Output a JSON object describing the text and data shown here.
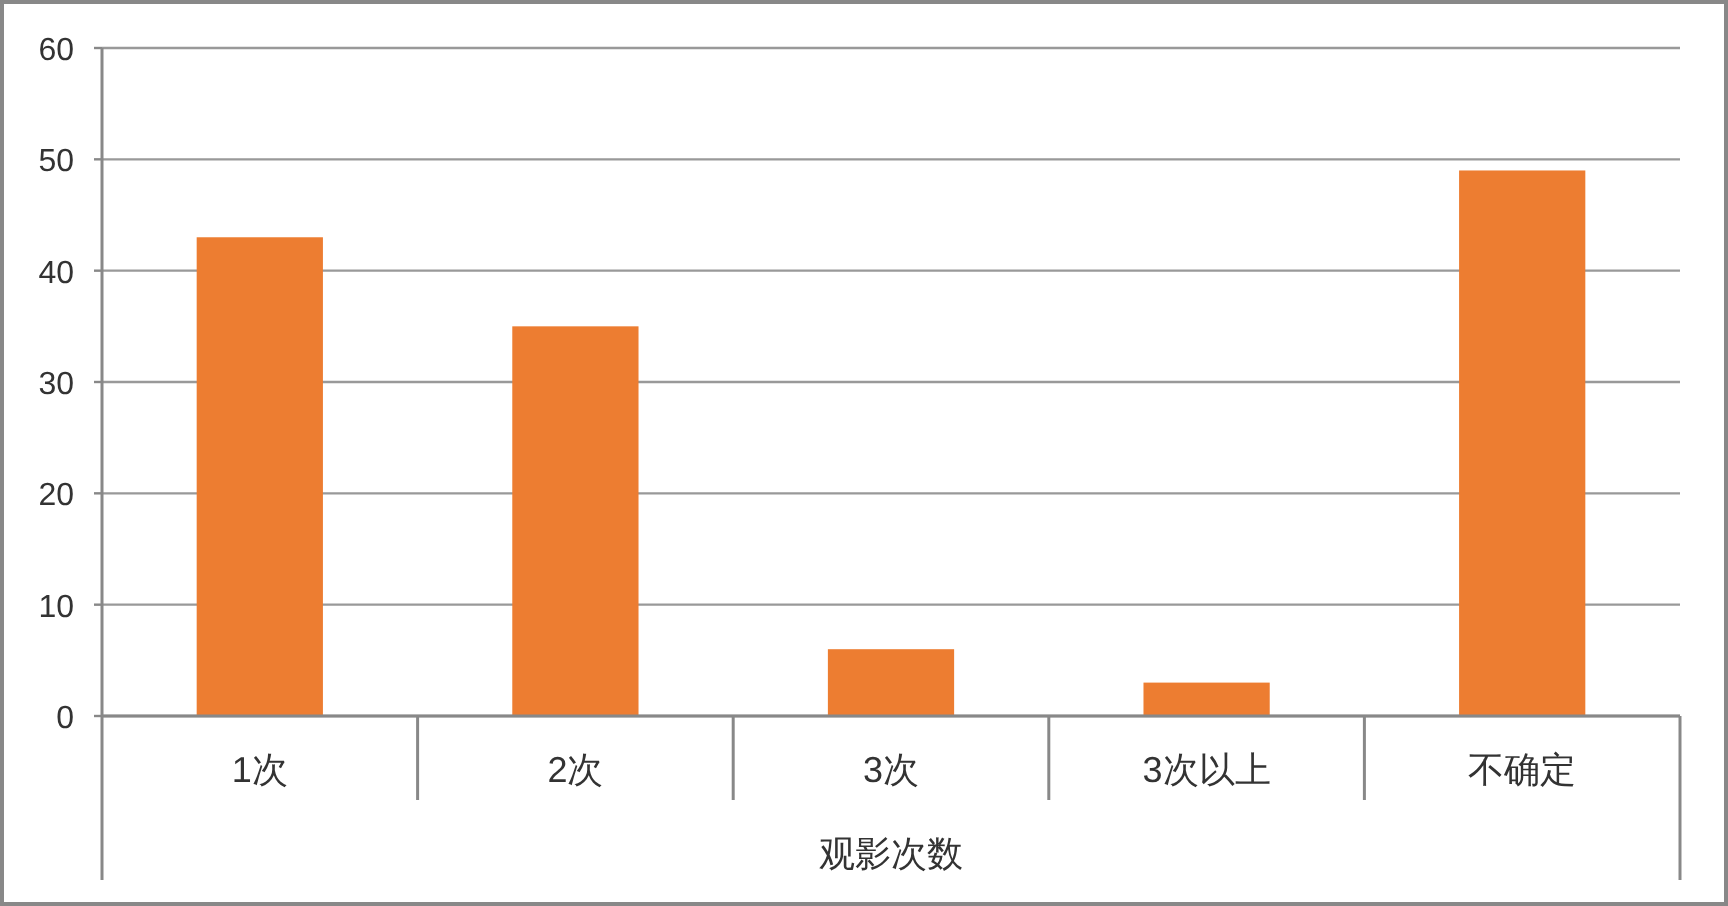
{
  "chart_data": {
    "type": "bar",
    "xlabel": "观影次数",
    "categories": [
      "1次",
      "2次",
      "3次",
      "3次以上",
      "不确定"
    ],
    "values": [
      43,
      35,
      6,
      3,
      49
    ],
    "color": "#ed7d31",
    "ylim": [
      0,
      60
    ],
    "yticks": [
      0,
      10,
      20,
      30,
      40,
      50,
      60
    ],
    "grid": "y"
  }
}
